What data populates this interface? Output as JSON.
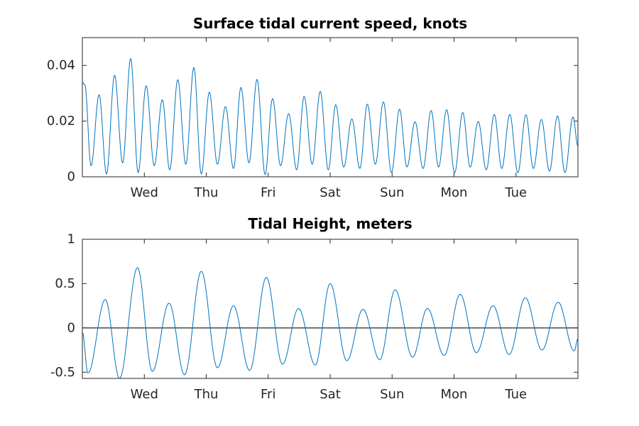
{
  "chart_data": [
    {
      "type": "line",
      "title": "Surface tidal current speed, knots",
      "xlabel": "",
      "ylabel": "",
      "x_tick_labels": [
        "Wed",
        "Thu",
        "Fri",
        "Sat",
        "Sun",
        "Mon",
        "Tue"
      ],
      "ytick_labels": [
        "0",
        "0.02",
        "0.04"
      ],
      "yticks": [
        0,
        0.02,
        0.04
      ],
      "ylim": [
        0,
        0.05
      ],
      "xlim_days": [
        0,
        8
      ],
      "xtick_positions_days": [
        1,
        2,
        3,
        4,
        5,
        6,
        7
      ],
      "grid": false,
      "line_color": "#0072BD",
      "series": [
        {
          "x": [
            0.0,
            0.04,
            0.14,
            0.27,
            0.39,
            0.52,
            0.65,
            0.78,
            0.9,
            1.03,
            1.16,
            1.29,
            1.41,
            1.54,
            1.67,
            1.8,
            1.92,
            2.05,
            2.18,
            2.31,
            2.44,
            2.56,
            2.69,
            2.82,
            2.95,
            3.07,
            3.2,
            3.33,
            3.46,
            3.58,
            3.71,
            3.84,
            3.97,
            4.09,
            4.22,
            4.35,
            4.48,
            4.6,
            4.73,
            4.86,
            4.99,
            5.12,
            5.24,
            5.37,
            5.5,
            5.63,
            5.75,
            5.88,
            6.01,
            6.14,
            6.26,
            6.39,
            6.52,
            6.65,
            6.77,
            6.9,
            7.03,
            7.16,
            7.28,
            7.41,
            7.54,
            7.67,
            7.79,
            7.92,
            8.0
          ],
          "y": [
            0.034,
            0.033,
            0.004,
            0.0295,
            0.001,
            0.0365,
            0.005,
            0.0425,
            0.0015,
            0.0327,
            0.004,
            0.0277,
            0.0025,
            0.0349,
            0.0045,
            0.0393,
            0.001,
            0.0304,
            0.0045,
            0.0252,
            0.003,
            0.0321,
            0.005,
            0.035,
            0.0008,
            0.0281,
            0.004,
            0.0227,
            0.0025,
            0.0289,
            0.0045,
            0.0307,
            0.0025,
            0.0259,
            0.0035,
            0.0208,
            0.003,
            0.0261,
            0.0045,
            0.0269,
            0.0015,
            0.0243,
            0.0035,
            0.0198,
            0.003,
            0.0238,
            0.0035,
            0.0241,
            0.0015,
            0.0231,
            0.0035,
            0.0199,
            0.0025,
            0.0224,
            0.003,
            0.0224,
            0.0015,
            0.0223,
            0.003,
            0.0206,
            0.002,
            0.0219,
            0.0015,
            0.0215,
            0.011
          ]
        }
      ]
    },
    {
      "type": "line",
      "title": "Tidal Height, meters",
      "xlabel": "",
      "ylabel": "",
      "x_tick_labels": [
        "Wed",
        "Thu",
        "Fri",
        "Sat",
        "Sun",
        "Mon",
        "Tue"
      ],
      "ytick_labels": [
        "-0.5",
        "0",
        "0.5",
        "1"
      ],
      "yticks": [
        -0.5,
        0,
        0.5,
        1
      ],
      "ylim": [
        -0.57,
        1
      ],
      "xlim_days": [
        0,
        8
      ],
      "xtick_positions_days": [
        1,
        2,
        3,
        4,
        5,
        6,
        7
      ],
      "grid": false,
      "line_color": "#0072BD",
      "reference_line": {
        "y": 0,
        "color": "#262626"
      },
      "series": [
        {
          "x": [
            0.0,
            0.09,
            0.37,
            0.6,
            0.89,
            1.13,
            1.4,
            1.65,
            1.92,
            2.18,
            2.44,
            2.7,
            2.97,
            3.23,
            3.49,
            3.76,
            4.0,
            4.27,
            4.53,
            4.8,
            5.05,
            5.33,
            5.57,
            5.84,
            6.1,
            6.36,
            6.63,
            6.89,
            7.15,
            7.42,
            7.68,
            7.94,
            8.0
          ],
          "y": [
            -0.05,
            -0.51,
            0.32,
            -0.57,
            0.68,
            -0.49,
            0.28,
            -0.53,
            0.64,
            -0.45,
            0.25,
            -0.48,
            0.57,
            -0.41,
            0.22,
            -0.42,
            0.5,
            -0.37,
            0.21,
            -0.36,
            0.43,
            -0.33,
            0.22,
            -0.31,
            0.38,
            -0.28,
            0.25,
            -0.3,
            0.34,
            -0.25,
            0.29,
            -0.26,
            -0.12
          ]
        }
      ]
    }
  ]
}
